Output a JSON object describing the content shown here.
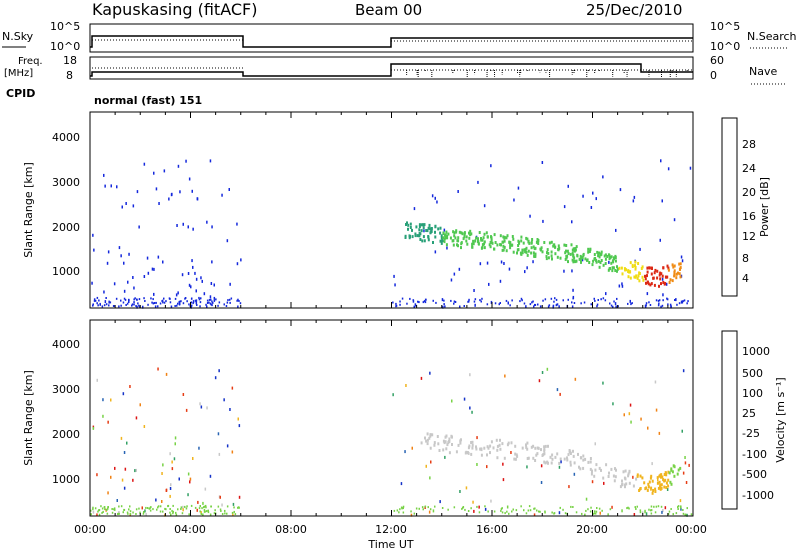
{
  "header": {
    "station": "Kapuskasing (fitACF)",
    "beam": "Beam 00",
    "date": "25/Dec/2010"
  },
  "status_panels": {
    "nsky_label": "N.Sky",
    "nsky_ticks": [
      "10^5",
      "10^0"
    ],
    "nsearch_label": "N.Search",
    "nsearch_ticks": [
      "10^5",
      "10^0"
    ],
    "freq_label_1": "Freq.",
    "freq_label_2": "[MHz]",
    "freq_ticks": [
      "18",
      "8"
    ],
    "nave_label": "Nave",
    "nave_ticks": [
      "60",
      "0"
    ],
    "cpid_label": "CPID",
    "cpid_value": "normal (fast) 151",
    "line_style": {
      "solid": "#000000",
      "dotted": "#000000"
    }
  },
  "chart_data": [
    {
      "type": "heatmap",
      "name": "power-panel",
      "ylabel": "Slant Range [km]",
      "y_ticks": [
        "1000",
        "2000",
        "3000",
        "4000"
      ],
      "ylim": [
        200,
        4600
      ],
      "xlim_hours": [
        0,
        24
      ],
      "colorbar": {
        "label": "Power [dB]",
        "tick_labels": [
          "4",
          "8",
          "12",
          "16",
          "20",
          "24",
          "28"
        ],
        "colors": [
          "#1428dc",
          "#1e5aa0",
          "#28a078",
          "#50c850",
          "#f0dc14",
          "#f08c14",
          "#dc2814"
        ]
      },
      "data_segments": [
        {
          "start_hour": 0.0,
          "end_hour": 6.0
        },
        {
          "start_hour": 12.0,
          "end_hour": 24.0
        }
      ],
      "echo_bands": [
        {
          "hour": 12.5,
          "range_km": 2000,
          "level": 2
        },
        {
          "hour": 13.5,
          "range_km": 1900,
          "level": 2
        },
        {
          "hour": 14.5,
          "range_km": 1800,
          "level": 3
        },
        {
          "hour": 15.5,
          "range_km": 1750,
          "level": 3
        },
        {
          "hour": 16.5,
          "range_km": 1700,
          "level": 3
        },
        {
          "hour": 17.5,
          "range_km": 1600,
          "level": 3
        },
        {
          "hour": 18.5,
          "range_km": 1500,
          "level": 3
        },
        {
          "hour": 19.5,
          "range_km": 1450,
          "level": 3
        },
        {
          "hour": 20.5,
          "range_km": 1300,
          "level": 3
        },
        {
          "hour": 21.5,
          "range_km": 1100,
          "level": 4
        },
        {
          "hour": 22.5,
          "range_km": 900,
          "level": 6
        },
        {
          "hour": 23.5,
          "range_km": 1100,
          "level": 5
        }
      ]
    },
    {
      "type": "heatmap",
      "name": "velocity-panel",
      "ylabel": "Slant Range [km]",
      "y_ticks": [
        "1000",
        "2000",
        "3000",
        "4000"
      ],
      "ylim": [
        200,
        4600
      ],
      "xlim_hours": [
        0,
        24
      ],
      "xlabel": "Time UT",
      "x_ticks": [
        "00:00",
        "04:00",
        "08:00",
        "12:00",
        "16:00",
        "20:00",
        "00:00"
      ],
      "colorbar": {
        "label": "Velocity [m s⁻¹]",
        "tick_labels": [
          "1000",
          "500",
          "100",
          "25",
          "-25",
          "-100",
          "-500",
          "-1000"
        ],
        "colors": [
          "#1432c8",
          "#2864b4",
          "#32a064",
          "#78d246",
          "#c8c8c8",
          "#f0b41e",
          "#f08214",
          "#e63c14",
          "#dc1414"
        ]
      },
      "data_segments": [
        {
          "start_hour": 0.0,
          "end_hour": 6.0
        },
        {
          "start_hour": 12.0,
          "end_hour": 24.0
        }
      ],
      "echo_bands": [
        {
          "hour": 13.0,
          "range_km": 1900,
          "level": "grey"
        },
        {
          "hour": 15.0,
          "range_km": 1800,
          "level": "grey"
        },
        {
          "hour": 17.0,
          "range_km": 1700,
          "level": "grey"
        },
        {
          "hour": 19.0,
          "range_km": 1550,
          "level": "grey"
        },
        {
          "hour": 21.0,
          "range_km": 1100,
          "level": "grey"
        },
        {
          "hour": 22.5,
          "range_km": 900,
          "level": "orange"
        },
        {
          "hour": 23.5,
          "range_km": 1300,
          "level": "green"
        }
      ]
    }
  ]
}
